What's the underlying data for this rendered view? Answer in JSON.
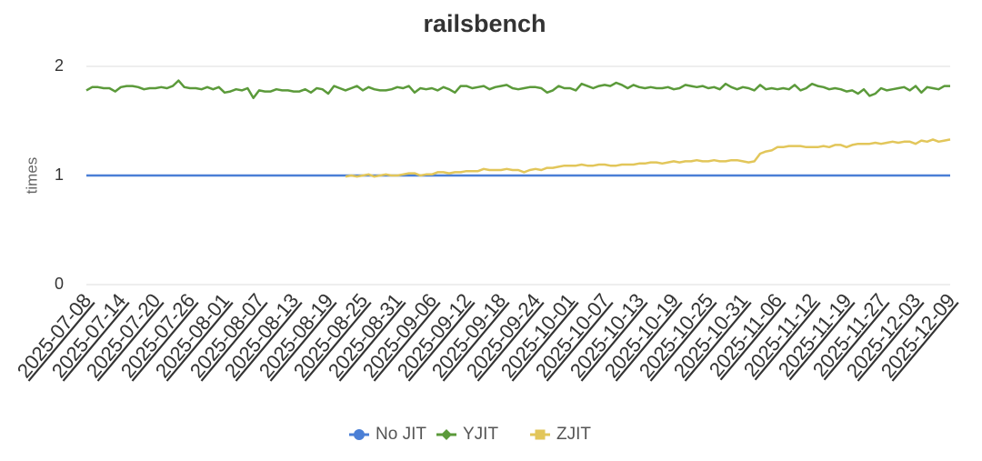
{
  "chart_data": {
    "type": "line",
    "title": "railsbench",
    "y_label": "times",
    "categories": [
      "2025-07-08",
      null,
      null,
      null,
      null,
      null,
      "2025-07-14",
      null,
      null,
      null,
      null,
      null,
      "2025-07-20",
      null,
      null,
      null,
      null,
      null,
      "2025-07-26",
      null,
      null,
      null,
      null,
      null,
      "2025-08-01",
      null,
      null,
      null,
      null,
      null,
      "2025-08-07",
      null,
      null,
      null,
      null,
      null,
      "2025-08-13",
      null,
      null,
      null,
      null,
      null,
      "2025-08-19",
      null,
      null,
      null,
      null,
      null,
      "2025-08-25",
      null,
      null,
      null,
      null,
      null,
      "2025-08-31",
      null,
      null,
      null,
      null,
      null,
      "2025-09-06",
      null,
      null,
      null,
      null,
      null,
      "2025-09-12",
      null,
      null,
      null,
      null,
      null,
      "2025-09-18",
      null,
      null,
      null,
      null,
      null,
      "2025-09-24",
      null,
      null,
      null,
      null,
      null,
      "2025-10-01",
      null,
      null,
      null,
      null,
      null,
      "2025-10-07",
      null,
      null,
      null,
      null,
      null,
      "2025-10-13",
      null,
      null,
      null,
      null,
      null,
      "2025-10-19",
      null,
      null,
      null,
      null,
      null,
      "2025-10-25",
      null,
      null,
      null,
      null,
      null,
      "2025-10-31",
      null,
      null,
      null,
      null,
      null,
      "2025-11-06",
      null,
      null,
      null,
      null,
      null,
      "2025-11-12",
      null,
      null,
      null,
      null,
      null,
      "2025-11-19",
      null,
      null,
      null,
      null,
      null,
      "2025-11-27",
      null,
      null,
      null,
      null,
      null,
      "2025-12-03",
      null,
      null,
      null,
      null,
      null,
      "2025-12-09"
    ],
    "series": [
      {
        "name": "No JIT",
        "color": "#4a7fd6",
        "marker": "circle",
        "values": [
          1,
          1,
          1,
          1,
          1,
          1,
          1,
          1,
          1,
          1,
          1,
          1,
          1,
          1,
          1,
          1,
          1,
          1,
          1,
          1,
          1,
          1,
          1,
          1,
          1,
          1,
          1,
          1,
          1,
          1,
          1,
          1,
          1,
          1,
          1,
          1,
          1,
          1,
          1,
          1,
          1,
          1,
          1,
          1,
          1,
          1,
          1,
          1,
          1,
          1,
          1,
          1,
          1,
          1,
          1,
          1,
          1,
          1,
          1,
          1,
          1,
          1,
          1,
          1,
          1,
          1,
          1,
          1,
          1,
          1,
          1,
          1,
          1,
          1,
          1,
          1,
          1,
          1,
          1,
          1,
          1,
          1,
          1,
          1,
          1,
          1,
          1,
          1,
          1,
          1,
          1,
          1,
          1,
          1,
          1,
          1,
          1,
          1,
          1,
          1,
          1,
          1,
          1,
          1,
          1,
          1,
          1,
          1,
          1,
          1,
          1,
          1,
          1,
          1,
          1,
          1,
          1,
          1,
          1,
          1,
          1,
          1,
          1,
          1,
          1,
          1,
          1,
          1,
          1,
          1,
          1,
          1,
          1,
          1,
          1,
          1,
          1,
          1,
          1,
          1,
          1,
          1,
          1,
          1,
          1,
          1,
          1,
          1,
          1,
          1,
          1
        ]
      },
      {
        "name": "YJIT",
        "color": "#5b9a3a",
        "marker": "diamond",
        "values": [
          1.78,
          1.81,
          1.81,
          1.8,
          1.8,
          1.77,
          1.81,
          1.82,
          1.82,
          1.81,
          1.79,
          1.8,
          1.8,
          1.81,
          1.8,
          1.82,
          1.87,
          1.81,
          1.8,
          1.8,
          1.79,
          1.81,
          1.79,
          1.81,
          1.76,
          1.77,
          1.79,
          1.78,
          1.8,
          1.71,
          1.78,
          1.77,
          1.77,
          1.79,
          1.78,
          1.78,
          1.77,
          1.77,
          1.79,
          1.76,
          1.8,
          1.79,
          1.75,
          1.82,
          1.8,
          1.78,
          1.8,
          1.82,
          1.78,
          1.81,
          1.79,
          1.78,
          1.78,
          1.79,
          1.81,
          1.8,
          1.82,
          1.76,
          1.8,
          1.79,
          1.8,
          1.78,
          1.81,
          1.79,
          1.76,
          1.82,
          1.82,
          1.8,
          1.81,
          1.82,
          1.79,
          1.81,
          1.82,
          1.83,
          1.8,
          1.79,
          1.8,
          1.81,
          1.81,
          1.8,
          1.76,
          1.78,
          1.82,
          1.8,
          1.8,
          1.78,
          1.84,
          1.82,
          1.8,
          1.82,
          1.83,
          1.82,
          1.85,
          1.83,
          1.8,
          1.83,
          1.81,
          1.8,
          1.81,
          1.8,
          1.8,
          1.81,
          1.79,
          1.8,
          1.83,
          1.82,
          1.81,
          1.82,
          1.8,
          1.81,
          1.79,
          1.84,
          1.81,
          1.79,
          1.81,
          1.8,
          1.78,
          1.83,
          1.79,
          1.8,
          1.79,
          1.8,
          1.79,
          1.83,
          1.78,
          1.8,
          1.84,
          1.82,
          1.81,
          1.79,
          1.8,
          1.79,
          1.77,
          1.78,
          1.75,
          1.79,
          1.73,
          1.75,
          1.8,
          1.78,
          1.79,
          1.8,
          1.81,
          1.78,
          1.82,
          1.76,
          1.81,
          1.8,
          1.79,
          1.82,
          1.82
        ]
      },
      {
        "name": "ZJIT",
        "color": "#e2c65a",
        "marker": "square",
        "values": [
          null,
          null,
          null,
          null,
          null,
          null,
          null,
          null,
          null,
          null,
          null,
          null,
          null,
          null,
          null,
          null,
          null,
          null,
          null,
          null,
          null,
          null,
          null,
          null,
          null,
          null,
          null,
          null,
          null,
          null,
          null,
          null,
          null,
          null,
          null,
          null,
          null,
          null,
          null,
          null,
          null,
          null,
          null,
          null,
          null,
          0.99,
          1.0,
          0.99,
          1.0,
          1.01,
          0.99,
          1.0,
          1.01,
          1.0,
          1.0,
          1.01,
          1.02,
          1.02,
          1.0,
          1.01,
          1.01,
          1.03,
          1.03,
          1.02,
          1.03,
          1.03,
          1.04,
          1.04,
          1.04,
          1.06,
          1.05,
          1.05,
          1.05,
          1.06,
          1.05,
          1.05,
          1.03,
          1.05,
          1.06,
          1.05,
          1.07,
          1.07,
          1.08,
          1.09,
          1.09,
          1.09,
          1.1,
          1.09,
          1.09,
          1.1,
          1.1,
          1.09,
          1.09,
          1.1,
          1.1,
          1.1,
          1.11,
          1.11,
          1.12,
          1.12,
          1.11,
          1.12,
          1.13,
          1.12,
          1.13,
          1.13,
          1.14,
          1.13,
          1.13,
          1.14,
          1.13,
          1.13,
          1.14,
          1.14,
          1.13,
          1.12,
          1.13,
          1.2,
          1.22,
          1.23,
          1.26,
          1.26,
          1.27,
          1.27,
          1.27,
          1.26,
          1.26,
          1.26,
          1.27,
          1.26,
          1.28,
          1.28,
          1.26,
          1.28,
          1.29,
          1.29,
          1.29,
          1.3,
          1.29,
          1.3,
          1.31,
          1.3,
          1.31,
          1.31,
          1.29,
          1.32,
          1.31,
          1.33,
          1.31,
          1.32,
          1.33
        ]
      }
    ],
    "ylim": [
      0,
      2
    ],
    "yticks": [
      0,
      1,
      2
    ],
    "grid": true,
    "legend": "bottom"
  }
}
